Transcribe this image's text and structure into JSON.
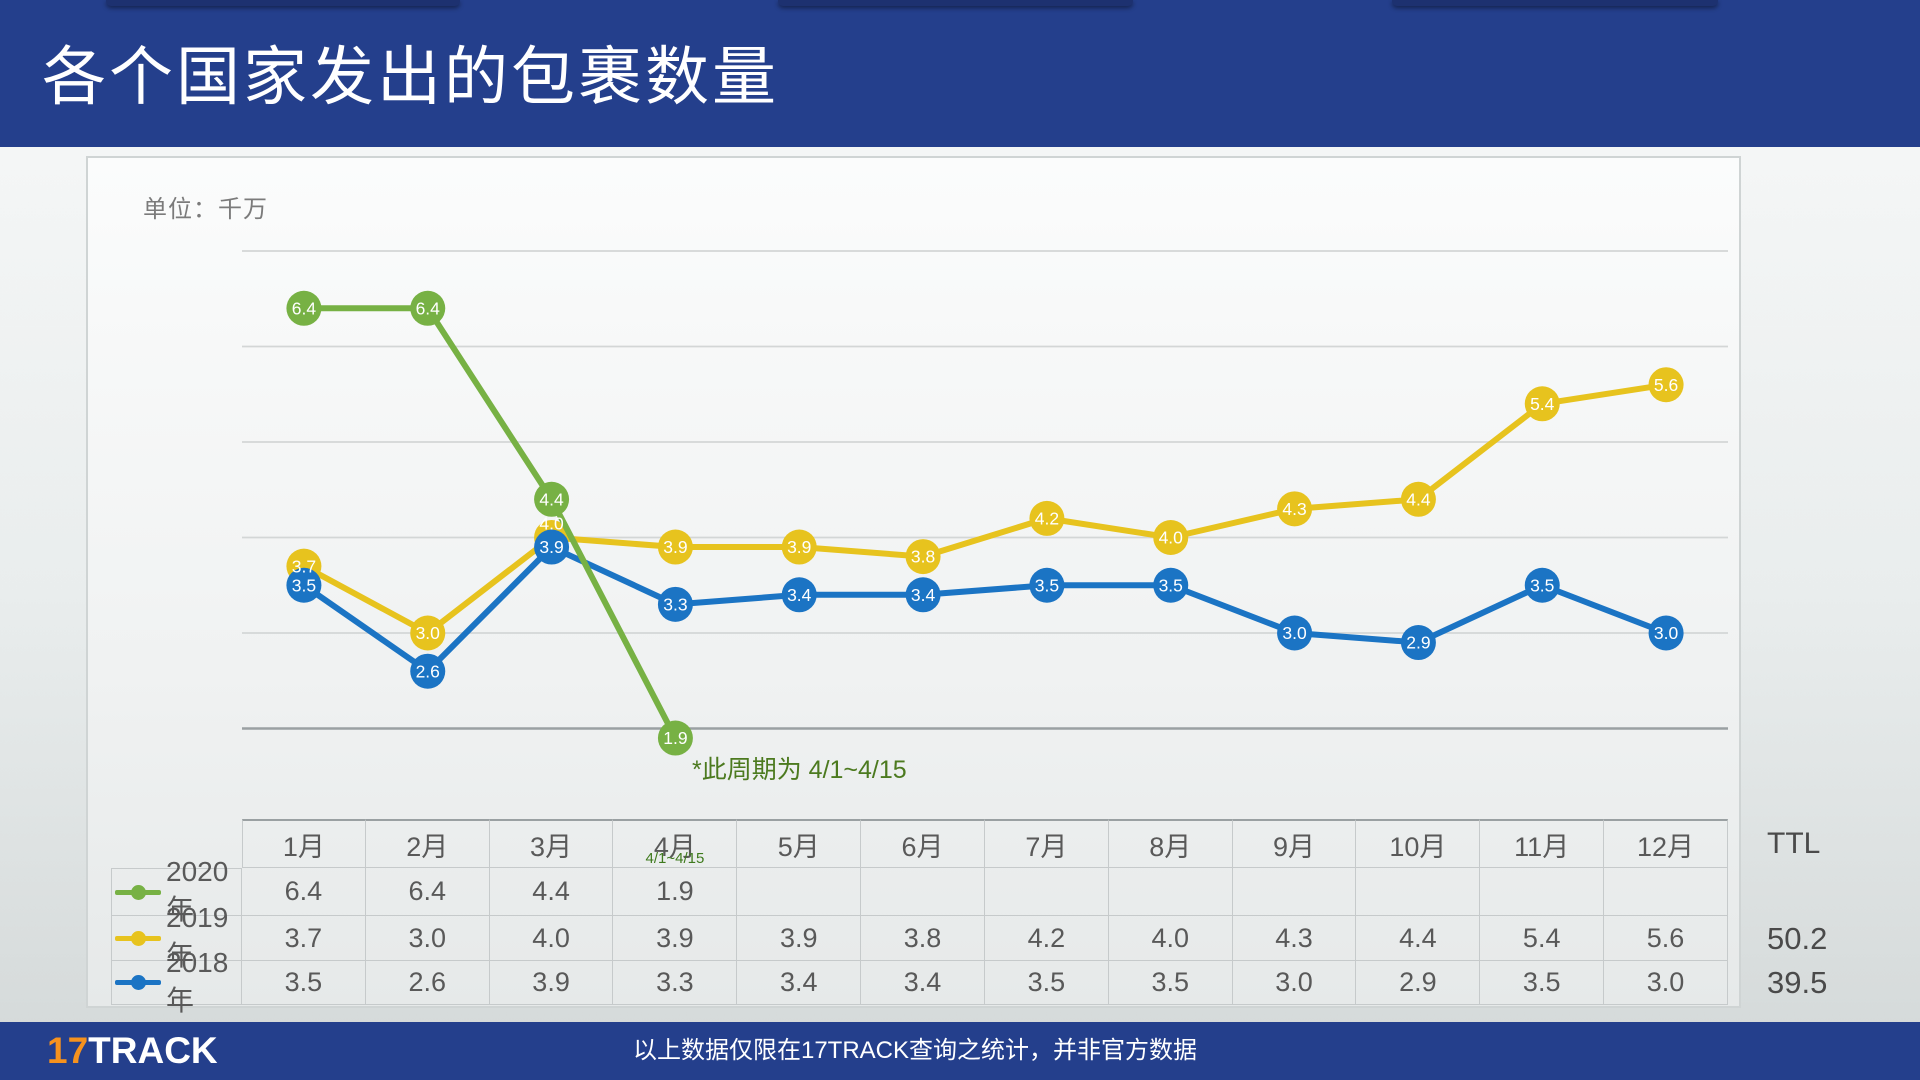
{
  "header": {
    "title": "各个国家发出的包裹数量"
  },
  "panel": {
    "unit_label": "单位：千万"
  },
  "chart_data": {
    "type": "line",
    "title": "各个国家发出的包裹数量",
    "unit": "千万",
    "categories": [
      "1月",
      "2月",
      "3月",
      "4月",
      "5月",
      "6月",
      "7月",
      "8月",
      "9月",
      "10月",
      "11月",
      "12月"
    ],
    "ylim": [
      2,
      7
    ],
    "gridline_values": [
      7,
      6,
      5,
      4,
      3
    ],
    "axis_value": 2,
    "grid": true,
    "legend_position": "table-left",
    "annotation": {
      "text": "*此周期为 4/1~4/15",
      "month_index": 3
    },
    "series": [
      {
        "name": "2020年",
        "color": "#77b144",
        "values": [
          6.4,
          6.4,
          4.4,
          1.9,
          null,
          null,
          null,
          null,
          null,
          null,
          null,
          null
        ],
        "total": null
      },
      {
        "name": "2019年",
        "color": "#e7c31e",
        "values": [
          3.7,
          3.0,
          4.0,
          3.9,
          3.9,
          3.8,
          4.2,
          4.0,
          4.3,
          4.4,
          5.4,
          5.6
        ],
        "total": 50.2
      },
      {
        "name": "2018年",
        "color": "#1b74c4",
        "values": [
          3.5,
          2.6,
          3.9,
          3.3,
          3.4,
          3.4,
          3.5,
          3.5,
          3.0,
          2.9,
          3.5,
          3.0
        ],
        "total": 39.5
      }
    ]
  },
  "table": {
    "ttl_label": "TTL",
    "month_sub_label": "4/1~4/15",
    "sub_label_month_index": 3
  },
  "footer": {
    "logo_prefix": "17",
    "logo_suffix": "TRACK",
    "disclaimer": "以上数据仅限在17TRACK查询之统计，并非官方数据"
  },
  "colors": {
    "brand_blue": "#243f8c",
    "brand_orange": "#f6921e",
    "grid_line": "#d3d6d6",
    "axis_line": "#9aa0a2",
    "table_border": "#c6cacb",
    "table_text": "#595959",
    "annotation_green": "#4c7a1f"
  }
}
